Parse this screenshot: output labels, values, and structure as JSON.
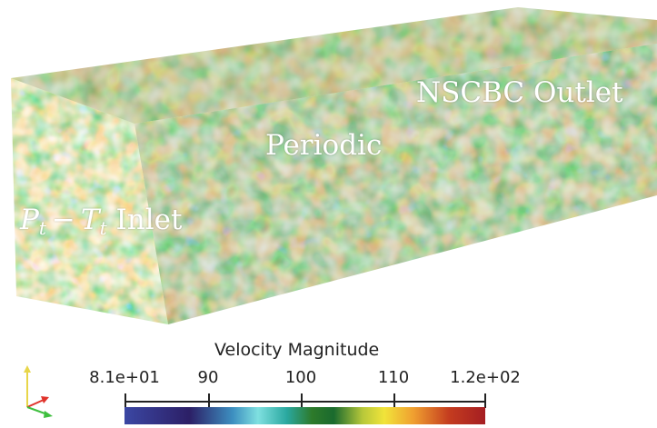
{
  "viewport": {
    "labels": {
      "outlet": "NSCBC Outlet",
      "periodic": "Periodic",
      "inlet_p": "P",
      "inlet_p_sub": "t",
      "inlet_minus": "−",
      "inlet_t": "T",
      "inlet_t_sub": "t",
      "inlet_word": "Inlet"
    }
  },
  "colorbar": {
    "title": "Velocity Magnitude",
    "ticks": [
      {
        "label": "8.1e+01",
        "value": 81
      },
      {
        "label": "90",
        "value": 90
      },
      {
        "label": "100",
        "value": 100
      },
      {
        "label": "110",
        "value": 110
      },
      {
        "label": "1.2e+02",
        "value": 120
      }
    ],
    "range": [
      81,
      120
    ],
    "colors": [
      "#3b47a3",
      "#2c1f66",
      "#7fe0e0",
      "#2d7a2a",
      "#f1e43a",
      "#f0a030",
      "#a51e22"
    ]
  },
  "orientation_axes": {
    "x_color": "#e0332b",
    "y_color": "#e8d64a",
    "z_color": "#3fbf3f"
  }
}
